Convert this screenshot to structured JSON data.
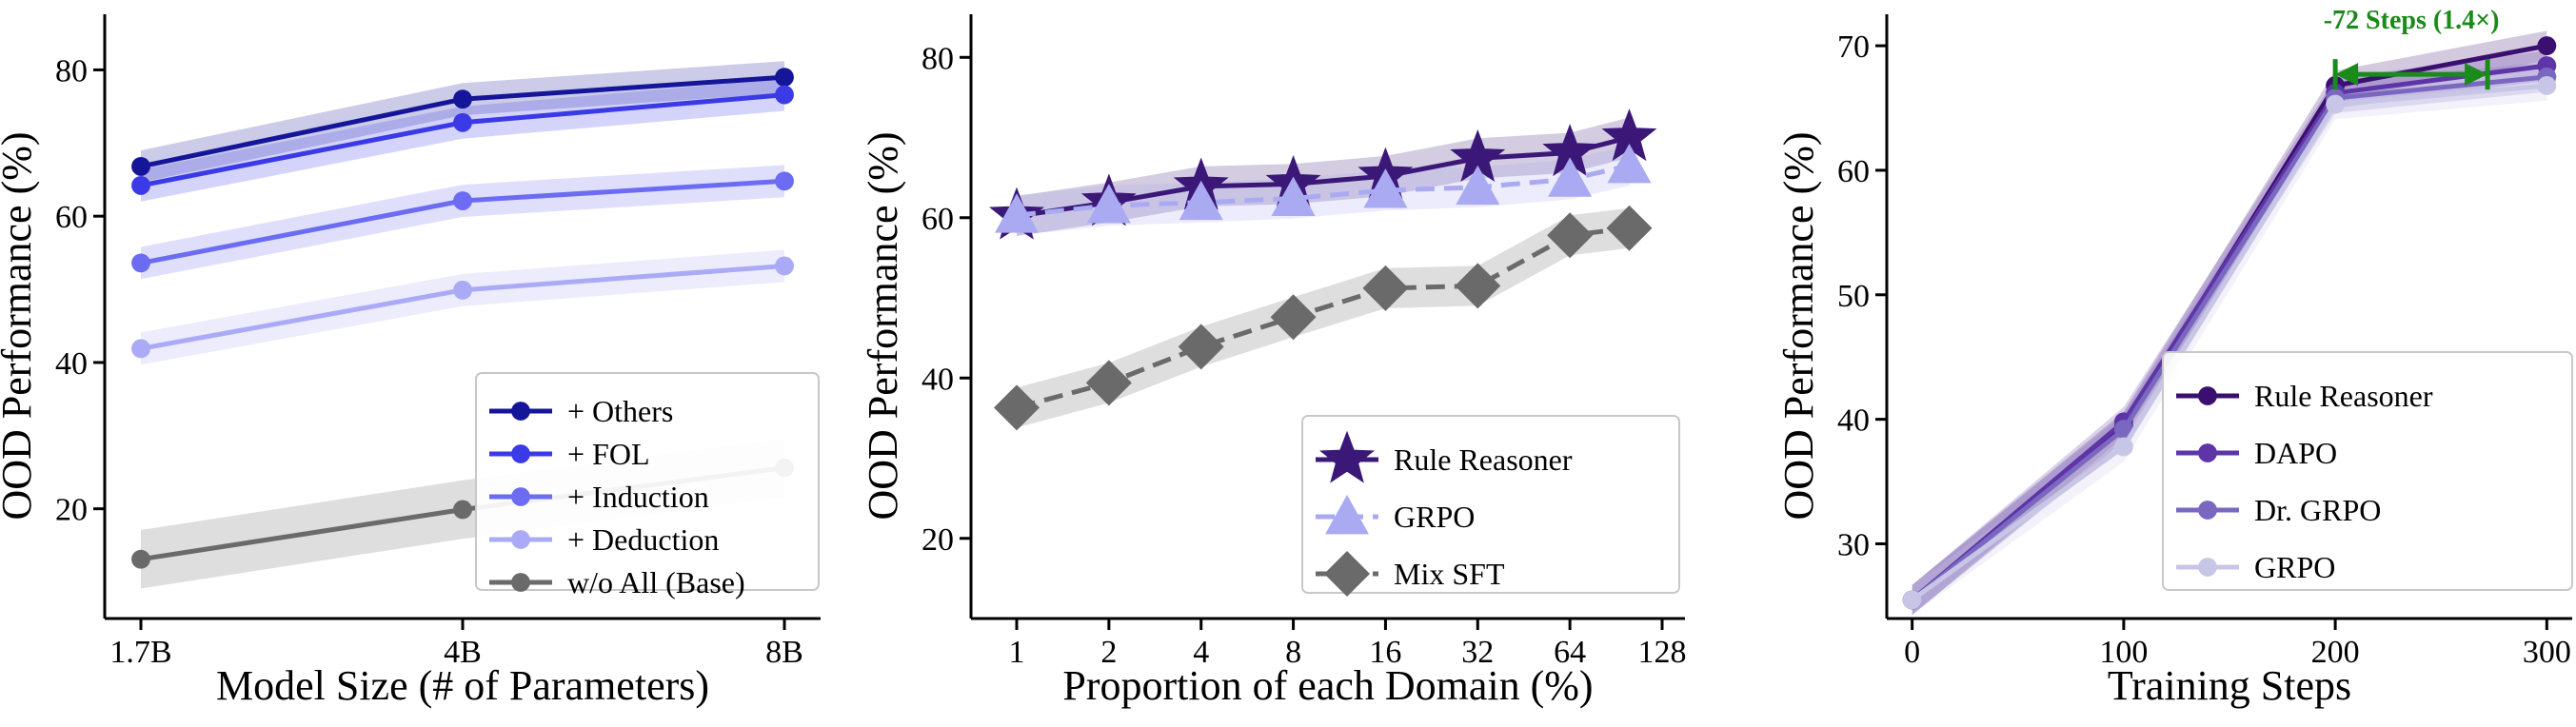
{
  "chart_data": [
    {
      "type": "line",
      "xscale": "categorical",
      "categories": [
        "1.7B",
        "4B",
        "8B"
      ],
      "xlabel": "Model Size (# of Parameters)",
      "ylabel": "OOD Performance (%)",
      "ylim": [
        5,
        85
      ],
      "yticks": [
        20,
        40,
        60,
        80
      ],
      "legend": "lower-right",
      "series": [
        {
          "name": "+ Others",
          "values": [
            66.8,
            76.0,
            79.0
          ],
          "color": "#15159a",
          "band": 2.2,
          "marker": "circle",
          "dash": false
        },
        {
          "name": "+ FOL",
          "values": [
            64.2,
            72.8,
            76.6
          ],
          "color": "#3a3ae6",
          "band": 2.2,
          "marker": "circle",
          "dash": false
        },
        {
          "name": "+ Induction",
          "values": [
            53.6,
            62.1,
            64.8
          ],
          "color": "#6c6cf2",
          "band": 2.2,
          "marker": "circle",
          "dash": false
        },
        {
          "name": "+ Deduction",
          "values": [
            41.9,
            49.9,
            53.2
          ],
          "color": "#aaaaf6",
          "band": 2.2,
          "marker": "circle",
          "dash": false
        },
        {
          "name": "w/o All (Base)",
          "values": [
            13.1,
            19.9,
            25.6
          ],
          "color": "#6a6a6a",
          "band": 4.0,
          "marker": "circle",
          "dash": false
        }
      ]
    },
    {
      "type": "line",
      "xscale": "log2",
      "x": [
        1,
        2,
        4,
        8,
        16,
        32,
        64,
        100
      ],
      "xticks": [
        1,
        2,
        4,
        8,
        16,
        32,
        64,
        128
      ],
      "xlabel": "Proportion of each Domain (%)",
      "ylabel": "OOD Performance (%)",
      "ylim": [
        10,
        83
      ],
      "yticks": [
        20,
        40,
        60,
        80
      ],
      "legend": "lower-right",
      "series": [
        {
          "name": "Rule Reasoner",
          "values": [
            60.2,
            61.9,
            63.9,
            64.2,
            65.2,
            67.4,
            68.1,
            70.0
          ],
          "color": "#3b1878",
          "band": 2.5,
          "marker": "star",
          "dash": false
        },
        {
          "name": "GRPO",
          "values": [
            60.3,
            61.5,
            61.9,
            62.4,
            63.4,
            63.8,
            64.8,
            66.5
          ],
          "color": "#aaaaf2",
          "band": 2.5,
          "marker": "triangle",
          "dash": true
        },
        {
          "name": "Mix SFT",
          "values": [
            36.3,
            39.4,
            43.9,
            47.6,
            51.2,
            51.5,
            57.8,
            58.7
          ],
          "color": "#6a6a6a",
          "band": 2.5,
          "marker": "diamond",
          "dash": true
        }
      ]
    },
    {
      "type": "line",
      "xscale": "linear",
      "x": [
        0,
        100,
        200,
        300
      ],
      "xticks": [
        0,
        100,
        200,
        300
      ],
      "xlim": [
        -12,
        312
      ],
      "xlabel": "Training Steps",
      "ylabel": "OOD Performance (%)",
      "ylim": [
        24,
        71
      ],
      "yticks": [
        30,
        40,
        50,
        60,
        70
      ],
      "legend": "lower-right",
      "annotation": {
        "text": "-72 Steps (1.4×)",
        "x_from": 200,
        "x_to": 272,
        "y": 67.7,
        "color": "#1a8a1a"
      },
      "series": [
        {
          "name": "Rule Reasoner",
          "values": [
            25.5,
            39.4,
            66.8,
            70.0
          ],
          "color": "#3b0f70",
          "band": 1.2,
          "marker": "circle",
          "dash": false
        },
        {
          "name": "DAPO",
          "values": [
            25.5,
            39.8,
            66.2,
            68.4
          ],
          "color": "#5e35a6",
          "band": 1.2,
          "marker": "circle",
          "dash": false
        },
        {
          "name": "Dr. GRPO",
          "values": [
            25.5,
            39.2,
            65.8,
            67.5
          ],
          "color": "#7a68c0",
          "band": 1.2,
          "marker": "circle",
          "dash": false
        },
        {
          "name": "GRPO",
          "values": [
            25.5,
            37.8,
            65.3,
            66.8
          ],
          "color": "#c8c6e6",
          "band": 1.2,
          "marker": "circle",
          "dash": false
        }
      ]
    }
  ]
}
